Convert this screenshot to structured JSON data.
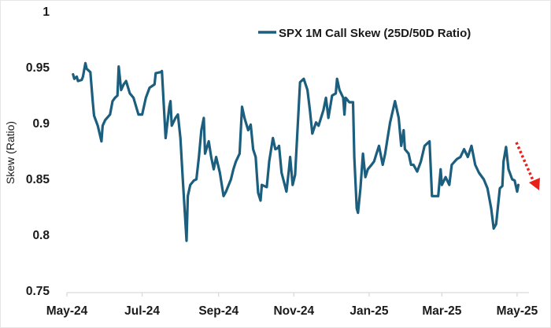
{
  "chart_data": {
    "type": "line",
    "title": "",
    "xlabel": "",
    "ylabel": "Skew (Ratio)",
    "ylim": [
      0.75,
      1
    ],
    "yticks": [
      "0.75",
      "0.8",
      "0.85",
      "0.9",
      "0.95",
      "1"
    ],
    "xticks": [
      {
        "label": "May-24",
        "date": "2024-05-01"
      },
      {
        "label": "Jul-24",
        "date": "2024-07-01"
      },
      {
        "label": "Sep-24",
        "date": "2024-09-01"
      },
      {
        "label": "Nov-24",
        "date": "2024-11-01"
      },
      {
        "label": "Jan-25",
        "date": "2025-01-01"
      },
      {
        "label": "Mar-25",
        "date": "2025-03-01"
      },
      {
        "label": "May-25",
        "date": "2025-05-01"
      }
    ],
    "grid": false,
    "legend_position": "top-right",
    "annotation": "red dotted downward arrow at series end",
    "colors": {
      "series": "#1b5e7e",
      "arrow": "#e8201b",
      "axis": "#d9d9d9"
    },
    "series": [
      {
        "name": "SPX 1M Call Skew (25D/50D Ratio)",
        "x": [
          "2024-05-06",
          "2024-05-07",
          "2024-05-09",
          "2024-05-10",
          "2024-05-13",
          "2024-05-14",
          "2024-05-16",
          "2024-05-17",
          "2024-05-20",
          "2024-05-22",
          "2024-05-23",
          "2024-05-26",
          "2024-05-29",
          "2024-05-30",
          "2024-06-01",
          "2024-06-05",
          "2024-06-07",
          "2024-06-09",
          "2024-06-11",
          "2024-06-12",
          "2024-06-14",
          "2024-06-16",
          "2024-06-18",
          "2024-06-21",
          "2024-06-24",
          "2024-06-28",
          "2024-07-01",
          "2024-07-04",
          "2024-07-07",
          "2024-07-11",
          "2024-07-12",
          "2024-07-16",
          "2024-07-17",
          "2024-07-20",
          "2024-07-23",
          "2024-07-24",
          "2024-07-25",
          "2024-07-28",
          "2024-07-30",
          "2024-08-01",
          "2024-08-03",
          "2024-08-06",
          "2024-08-07",
          "2024-08-09",
          "2024-08-12",
          "2024-08-14",
          "2024-08-16",
          "2024-08-18",
          "2024-08-20",
          "2024-08-21",
          "2024-08-24",
          "2024-08-26",
          "2024-08-28",
          "2024-08-30",
          "2024-09-02",
          "2024-09-05",
          "2024-09-07",
          "2024-09-11",
          "2024-09-13",
          "2024-09-15",
          "2024-09-18",
          "2024-09-20",
          "2024-09-22",
          "2024-09-25",
          "2024-09-27",
          "2024-09-29",
          "2024-10-01",
          "2024-10-03",
          "2024-10-05",
          "2024-10-06",
          "2024-10-10",
          "2024-10-12",
          "2024-10-15",
          "2024-10-17",
          "2024-10-19",
          "2024-10-20",
          "2024-10-22",
          "2024-10-26",
          "2024-10-28",
          "2024-10-29",
          "2024-10-31",
          "2024-11-02",
          "2024-11-06",
          "2024-11-09",
          "2024-11-12",
          "2024-11-14",
          "2024-11-16",
          "2024-11-19",
          "2024-11-21",
          "2024-11-25",
          "2024-11-27",
          "2024-11-29",
          "2024-12-02",
          "2024-12-05",
          "2024-12-06",
          "2024-12-08",
          "2024-12-11",
          "2024-12-12",
          "2024-12-13",
          "2024-12-16",
          "2024-12-19",
          "2024-12-20",
          "2024-12-22",
          "2024-12-23",
          "2024-12-25",
          "2024-12-27",
          "2024-12-29",
          "2024-12-31",
          "2025-01-03",
          "2025-01-05",
          "2025-01-07",
          "2025-01-09",
          "2025-01-12",
          "2025-01-14",
          "2025-01-16",
          "2025-01-18",
          "2025-01-22",
          "2025-01-25",
          "2025-01-27",
          "2025-01-29",
          "2025-01-30",
          "2025-02-02",
          "2025-02-04",
          "2025-02-06",
          "2025-02-09",
          "2025-02-12",
          "2025-02-15",
          "2025-02-19",
          "2025-02-21",
          "2025-02-26",
          "2025-02-28",
          "2025-03-01",
          "2025-03-04",
          "2025-03-07",
          "2025-03-09",
          "2025-03-13",
          "2025-03-16",
          "2025-03-19",
          "2025-03-22",
          "2025-03-25",
          "2025-03-28",
          "2025-03-31",
          "2025-04-04",
          "2025-04-07",
          "2025-04-10",
          "2025-04-12",
          "2025-04-14",
          "2025-04-17",
          "2025-04-19",
          "2025-04-20",
          "2025-04-22",
          "2025-04-24",
          "2025-04-27",
          "2025-04-29",
          "2025-05-01",
          "2025-05-02"
        ],
        "y": [
          0.944,
          0.94,
          0.942,
          0.938,
          0.939,
          0.942,
          0.954,
          0.949,
          0.946,
          0.919,
          0.907,
          0.898,
          0.884,
          0.898,
          0.903,
          0.908,
          0.92,
          0.923,
          0.925,
          0.951,
          0.93,
          0.935,
          0.938,
          0.927,
          0.923,
          0.908,
          0.908,
          0.923,
          0.932,
          0.935,
          0.945,
          0.946,
          0.947,
          0.887,
          0.915,
          0.92,
          0.898,
          0.905,
          0.908,
          0.887,
          0.849,
          0.795,
          0.835,
          0.845,
          0.849,
          0.85,
          0.87,
          0.894,
          0.905,
          0.873,
          0.884,
          0.87,
          0.859,
          0.87,
          0.856,
          0.835,
          0.839,
          0.85,
          0.859,
          0.866,
          0.873,
          0.915,
          0.905,
          0.894,
          0.899,
          0.877,
          0.87,
          0.838,
          0.831,
          0.845,
          0.843,
          0.866,
          0.887,
          0.877,
          0.878,
          0.88,
          0.856,
          0.839,
          0.859,
          0.87,
          0.845,
          0.854,
          0.937,
          0.94,
          0.93,
          0.912,
          0.891,
          0.901,
          0.898,
          0.912,
          0.923,
          0.905,
          0.925,
          0.927,
          0.94,
          0.93,
          0.923,
          0.908,
          0.923,
          0.919,
          0.919,
          0.87,
          0.824,
          0.82,
          0.842,
          0.873,
          0.852,
          0.859,
          0.863,
          0.866,
          0.873,
          0.88,
          0.863,
          0.873,
          0.887,
          0.901,
          0.92,
          0.905,
          0.88,
          0.894,
          0.877,
          0.873,
          0.863,
          0.863,
          0.857,
          0.866,
          0.88,
          0.884,
          0.835,
          0.835,
          0.859,
          0.845,
          0.852,
          0.845,
          0.863,
          0.868,
          0.87,
          0.877,
          0.87,
          0.88,
          0.863,
          0.856,
          0.85,
          0.842,
          0.824,
          0.806,
          0.81,
          0.842,
          0.844,
          0.866,
          0.879,
          0.859,
          0.85,
          0.849,
          0.839,
          0.845
        ]
      }
    ]
  }
}
